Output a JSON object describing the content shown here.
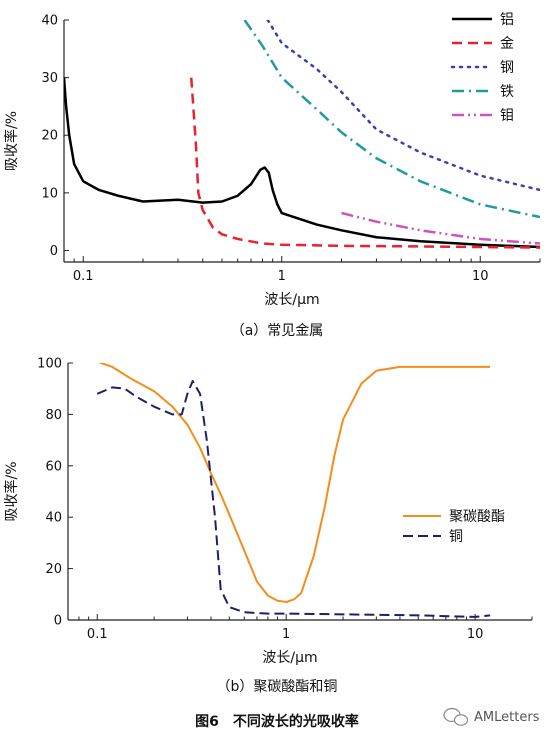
{
  "figure_title": "图6　不同波长的光吸收率",
  "watermark": "AMLetters",
  "chart_data": [
    {
      "type": "line",
      "caption": "（a）常见金属",
      "xlabel": "波长/μm",
      "ylabel": "吸收率/%",
      "xscale": "log",
      "xlim": [
        0.08,
        20
      ],
      "ylim": [
        -2,
        40
      ],
      "xticks": [
        0.1,
        1,
        10
      ],
      "xtick_labels": [
        "0.1",
        "1",
        "10"
      ],
      "yticks": [
        0,
        10,
        20,
        30,
        40
      ],
      "ytick_labels": [
        "0",
        "10",
        "20",
        "30",
        "40"
      ],
      "legend_position": "top-right",
      "series": [
        {
          "name": "铝",
          "color": "#000000",
          "dash": "solid",
          "width": 2.5,
          "x": [
            0.08,
            0.082,
            0.085,
            0.09,
            0.1,
            0.12,
            0.15,
            0.2,
            0.3,
            0.4,
            0.5,
            0.6,
            0.7,
            0.78,
            0.82,
            0.86,
            0.9,
            0.95,
            1.0,
            1.5,
            2,
            3,
            5,
            10,
            20
          ],
          "y": [
            30,
            25,
            20,
            15,
            12,
            10.5,
            9.5,
            8.5,
            8.8,
            8.3,
            8.5,
            9.5,
            11.5,
            14,
            14.4,
            13.5,
            10.5,
            8,
            6.5,
            4.5,
            3.5,
            2.3,
            1.6,
            1.0,
            0.6
          ]
        },
        {
          "name": "金",
          "color": "#e8232a",
          "dash": "10,6",
          "width": 2.5,
          "x": [
            0.35,
            0.36,
            0.37,
            0.38,
            0.4,
            0.45,
            0.5,
            0.6,
            0.8,
            1,
            2,
            5,
            10,
            20
          ],
          "y": [
            30,
            24,
            18,
            10,
            7,
            4,
            2.8,
            2,
            1.2,
            1,
            0.8,
            0.7,
            0.6,
            0.5
          ]
        },
        {
          "name": "钢",
          "color": "#3a3fb0",
          "dash": "2,6",
          "width": 2.5,
          "x": [
            0.85,
            1,
            1.5,
            2,
            3,
            5,
            10,
            20
          ],
          "y": [
            40,
            36,
            31.5,
            27.5,
            21,
            17,
            13,
            10.5
          ]
        },
        {
          "name": "铁",
          "color": "#1f9aa0",
          "dash": "12,5,2,5",
          "width": 2.5,
          "x": [
            0.65,
            0.8,
            1,
            1.5,
            2,
            3,
            5,
            10,
            20
          ],
          "y": [
            40,
            35.5,
            30,
            24.5,
            20.5,
            16,
            12,
            8,
            5.8
          ]
        },
        {
          "name": "钼",
          "color": "#cc55bb",
          "dash": "12,4,2,4,2,4",
          "width": 2.5,
          "x": [
            2,
            3,
            5,
            10,
            20
          ],
          "y": [
            6.5,
            5,
            3.5,
            2,
            1.2
          ]
        }
      ]
    },
    {
      "type": "line",
      "caption": "（b）聚碳酸酯和铜",
      "xlabel": "波长/μm",
      "ylabel": "吸收率/%",
      "xscale": "log",
      "xlim": [
        0.07,
        20
      ],
      "ylim": [
        0,
        100
      ],
      "xticks": [
        0.1,
        1,
        10
      ],
      "xtick_labels": [
        "0.1",
        "1",
        "10"
      ],
      "yticks": [
        0,
        20,
        40,
        60,
        80,
        100
      ],
      "ytick_labels": [
        "0",
        "20",
        "40",
        "60",
        "80",
        "100"
      ],
      "legend_position": "center-right",
      "series": [
        {
          "name": "聚碳酸酯",
          "color": "#f28e1c",
          "dash": "solid",
          "width": 2,
          "x": [
            0.1,
            0.12,
            0.15,
            0.2,
            0.25,
            0.3,
            0.35,
            0.4,
            0.45,
            0.5,
            0.6,
            0.7,
            0.8,
            0.9,
            1.0,
            1.1,
            1.2,
            1.4,
            1.6,
            1.8,
            2.0,
            2.5,
            3,
            4,
            5,
            8,
            12
          ],
          "y": [
            100.5,
            98.5,
            94,
            89,
            83,
            76,
            67,
            57,
            49,
            41,
            27,
            15,
            9.5,
            7.5,
            7,
            8,
            10.5,
            25,
            44,
            64,
            78,
            92,
            97,
            98.5,
            98.5,
            98.5,
            98.5
          ]
        },
        {
          "name": "铜",
          "color": "#1c1f6b",
          "dash": "10,5",
          "width": 2,
          "x": [
            0.1,
            0.12,
            0.14,
            0.16,
            0.2,
            0.25,
            0.28,
            0.3,
            0.32,
            0.35,
            0.38,
            0.42,
            0.45,
            0.5,
            0.6,
            0.8,
            1,
            2,
            5,
            10,
            12
          ],
          "y": [
            88,
            90.5,
            90,
            87,
            83,
            80,
            80,
            88,
            93,
            88,
            70,
            40,
            12,
            5,
            3,
            2.5,
            2.5,
            2.2,
            1.8,
            1.2,
            1.8
          ]
        }
      ]
    }
  ]
}
